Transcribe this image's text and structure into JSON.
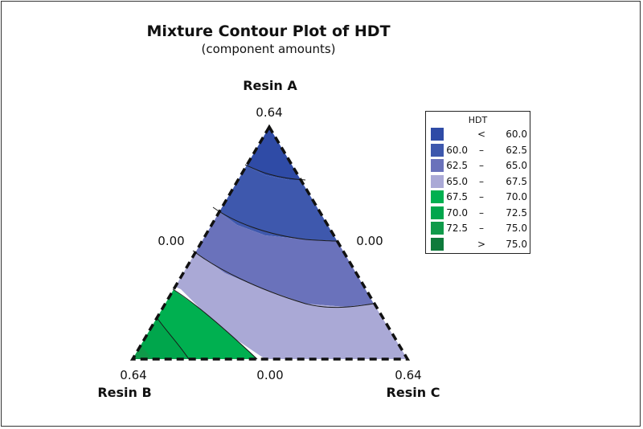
{
  "title": "Mixture Contour Plot of HDT",
  "subtitle": "(component amounts)",
  "chart_data": {
    "type": "ternary-contour",
    "vertices": {
      "top": "Resin A",
      "left": "Resin B",
      "right": "Resin C"
    },
    "tick_labels": {
      "top": "0.64",
      "left_mid": "0.00",
      "right_mid": "0.00",
      "left": "0.64",
      "bottom_mid": "0.00",
      "right": "0.64"
    },
    "legend": {
      "title": "HDT",
      "levels": [
        {
          "lo": "",
          "op": "<",
          "hi": "60.0",
          "color": "#2f4ba6"
        },
        {
          "lo": "60.0",
          "op": "–",
          "hi": "62.5",
          "color": "#3e58ad"
        },
        {
          "lo": "62.5",
          "op": "–",
          "hi": "65.0",
          "color": "#6a72bb"
        },
        {
          "lo": "65.0",
          "op": "–",
          "hi": "67.5",
          "color": "#aaa9d6"
        },
        {
          "lo": "67.5",
          "op": "–",
          "hi": "70.0",
          "color": "#00b050"
        },
        {
          "lo": "70.0",
          "op": "–",
          "hi": "72.5",
          "color": "#00a64c"
        },
        {
          "lo": "72.5",
          "op": "–",
          "hi": "75.0",
          "color": "#0f9a4a"
        },
        {
          "lo": "",
          "op": ">",
          "hi": "75.0",
          "color": "#0e7a3b"
        }
      ]
    }
  }
}
